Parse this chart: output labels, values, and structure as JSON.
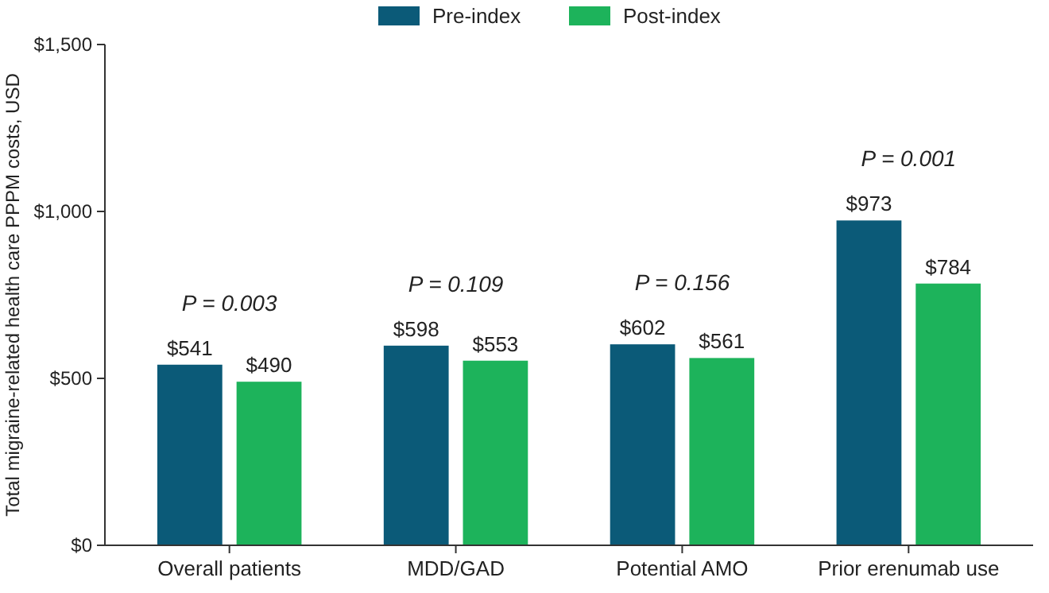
{
  "chart_data": {
    "type": "bar",
    "ylabel": "Total migraine-related health care PPPM costs, USD",
    "categories": [
      "Overall patients",
      "MDD/GAD",
      "Potential AMO",
      "Prior erenumab use"
    ],
    "series": [
      {
        "name": "Pre-index",
        "color": "#0b5a78",
        "values": [
          541,
          598,
          602,
          973
        ],
        "value_labels": [
          "$541",
          "$598",
          "$602",
          "$973"
        ]
      },
      {
        "name": "Post-index",
        "color": "#1db35b",
        "values": [
          490,
          553,
          561,
          784
        ],
        "value_labels": [
          "$490",
          "$553",
          "$561",
          "$784"
        ]
      }
    ],
    "ylim": [
      0,
      1500
    ],
    "yticks": [
      {
        "value": 0,
        "label": "$0"
      },
      {
        "value": 500,
        "label": "$500"
      },
      {
        "value": 1000,
        "label": "$1,000"
      },
      {
        "value": 1500,
        "label": "$1,500"
      }
    ],
    "annotations": [
      "P = 0.003",
      "P = 0.109",
      "P = 0.156",
      "P = 0.001"
    ],
    "legend": "top",
    "grid": false
  }
}
